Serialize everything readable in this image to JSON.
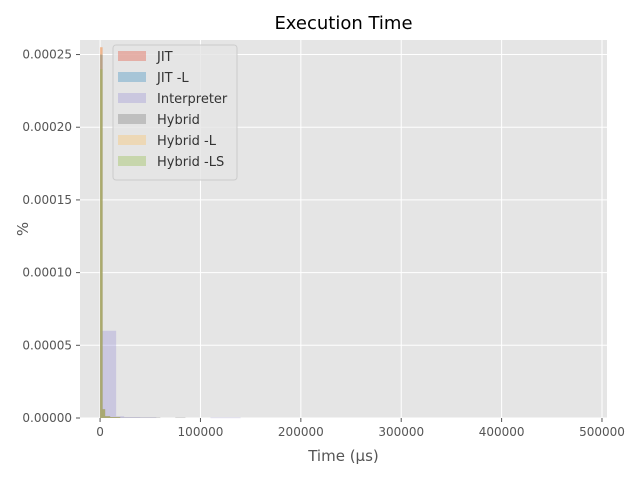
{
  "chart_data": {
    "type": "bar",
    "title": "Execution Time",
    "xlabel": "Time (μs)",
    "ylabel": "%",
    "xlim": [
      -20000,
      505000
    ],
    "ylim": [
      0,
      0.00026
    ],
    "xticks": [
      0,
      100000,
      200000,
      300000,
      400000,
      500000
    ],
    "xtick_labels": [
      "0",
      "100000",
      "200000",
      "300000",
      "400000",
      "500000"
    ],
    "yticks": [
      0,
      5e-05,
      0.0001,
      0.00015,
      0.0002,
      0.00025
    ],
    "ytick_labels": [
      "0.00000",
      "0.00005",
      "0.00010",
      "0.00015",
      "0.00020",
      "0.00025"
    ],
    "grid": true,
    "legend_position": "top-left",
    "bar_opacity": 0.35,
    "series": [
      {
        "name": "JIT",
        "color": "#E24A33",
        "bins": [
          [
            0,
            2500,
            0.000255
          ],
          [
            2500,
            5000,
            6e-06
          ],
          [
            5000,
            10000,
            1.2e-06
          ],
          [
            10000,
            20000,
            6e-07
          ]
        ]
      },
      {
        "name": "JIT -L",
        "color": "#348ABD",
        "bins": [
          [
            0,
            2500,
            0.00025
          ],
          [
            2500,
            5000,
            6e-06
          ],
          [
            5000,
            10000,
            1.2e-06
          ],
          [
            10000,
            20000,
            6e-07
          ]
        ]
      },
      {
        "name": "Interpreter",
        "color": "#988ED5",
        "bins": [
          [
            0,
            8000,
            6e-05
          ],
          [
            8000,
            16000,
            6e-05
          ],
          [
            16000,
            24000,
            1.2e-06
          ],
          [
            24000,
            40000,
            6e-07
          ],
          [
            40000,
            56000,
            4e-07
          ],
          [
            110000,
            140000,
            3e-07
          ]
        ]
      },
      {
        "name": "Hybrid",
        "color": "#777777",
        "bins": [
          [
            0,
            2500,
            0.00025
          ],
          [
            2500,
            5000,
            6e-06
          ],
          [
            5000,
            10000,
            1.2e-06
          ],
          [
            10000,
            20000,
            6e-07
          ],
          [
            20000,
            40000,
            4e-07
          ],
          [
            40000,
            60000,
            4e-07
          ],
          [
            75000,
            85000,
            4e-07
          ]
        ]
      },
      {
        "name": "Hybrid -L",
        "color": "#FBC15E",
        "bins": [
          [
            0,
            2500,
            0.000255
          ],
          [
            2500,
            5000,
            6e-06
          ],
          [
            5000,
            10000,
            1.2e-06
          ],
          [
            10000,
            20000,
            6e-07
          ]
        ]
      },
      {
        "name": "Hybrid -LS",
        "color": "#8EBA42",
        "bins": [
          [
            0,
            2500,
            0.00024
          ],
          [
            2500,
            5000,
            6e-06
          ],
          [
            5000,
            10000,
            1.2e-06
          ],
          [
            10000,
            20000,
            6e-07
          ]
        ]
      }
    ]
  }
}
